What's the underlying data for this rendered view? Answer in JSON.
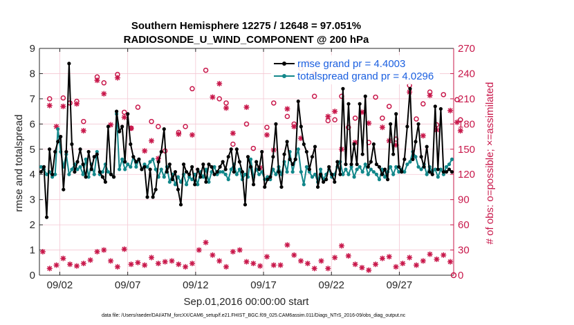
{
  "chart_data": {
    "type": "line",
    "title_line1": "Southern Hemisphere 12275 / 12648 = 97.051%",
    "title_line2": "RADIOSONDE_U_WIND_COMPONENT @ 200 hPa",
    "xlabel": "Sep.01,2016 00:00:00 start",
    "ylabel": "rmse and totalspread",
    "ylabel_right": "# of obs: o=possible; ×=assimilated",
    "footer": "data file: /Users/raeder/DAI/ATM_forcXX/CAM6_setup/f.e21.FHIST_BGC.f09_025.CAM6assim.011/Diags_NTrS_2016-09/obs_diag_output.nc",
    "xlim": [
      0.5,
      31
    ],
    "ylim": [
      0,
      9
    ],
    "ylim_right": [
      0,
      270
    ],
    "x_ticks": [
      2,
      7,
      12,
      17,
      22,
      27
    ],
    "x_tick_labels": [
      "09/02",
      "09/07",
      "09/12",
      "09/17",
      "09/22",
      "09/27"
    ],
    "y_ticks": [
      "0",
      "1",
      "2",
      "3",
      "4",
      "5",
      "6",
      "7",
      "8",
      "9"
    ],
    "y_ticks_right": [
      "0",
      "30",
      "60",
      "90",
      "120",
      "150",
      "180",
      "210",
      "240",
      "270"
    ],
    "grid": true,
    "legend": [
      {
        "name": "rmse",
        "label": "rmse grand pr = 4.4003",
        "color": "#000000"
      },
      {
        "name": "totalspread",
        "label": "totalspread grand pr = 4.0296",
        "color": "#12878a"
      }
    ],
    "series": [
      {
        "name": "rmse",
        "color": "#000000",
        "values": [
          4.1,
          4.3,
          2.3,
          5.0,
          4.0,
          4.9,
          5.3,
          5.5,
          3.4,
          4.9,
          8.4,
          5.2,
          4.1,
          4.5,
          5.0,
          4.4,
          3.9,
          4.9,
          4.2,
          4.7,
          4.8,
          4.1,
          3.9,
          3.7,
          5.9,
          4.0,
          3.9,
          6.5,
          5.7,
          5.9,
          4.5,
          6.4,
          5.2,
          4.7,
          4.5,
          4.6,
          4.2,
          4.3,
          3.1,
          4.2,
          3.1,
          3.4,
          4.5,
          4.9,
          5.8,
          4.1,
          4.4,
          3.8,
          4.1,
          3.4,
          2.8,
          4.4,
          4.1,
          4.0,
          4.3,
          3.6,
          4.2,
          3.9,
          4.4,
          3.7,
          4.4,
          4.3,
          4.0,
          4.1,
          4.3,
          4.5,
          4.2,
          4.7,
          5.0,
          4.1,
          5.0,
          4.5,
          4.1,
          2.8,
          4.7,
          4.3,
          3.6,
          4.5,
          4.2,
          4.9,
          3.5,
          3.8,
          3.9,
          4.7,
          6.0,
          4.1,
          3.5,
          4.8,
          5.3,
          4.6,
          4.4,
          4.6,
          6.9,
          5.9,
          5.2,
          4.9,
          4.2,
          4.7,
          5.1,
          3.5,
          4.0,
          3.7,
          3.8,
          4.3,
          4.0,
          3.7,
          4.5,
          4.0,
          7.4,
          4.4,
          6.8,
          4.4,
          5.2,
          4.4,
          6.8,
          4.8,
          7.1,
          4.3,
          4.5,
          5.2,
          4.4,
          4.3,
          4.0,
          4.2,
          3.8,
          6.0,
          4.8,
          6.4,
          4.3,
          4.1,
          4.6,
          5.9,
          7.4,
          4.6,
          5.3,
          6.0,
          4.7,
          4.3,
          5.1,
          4.1,
          4.0,
          6.7,
          4.2,
          6.6,
          4.1,
          4.1,
          4.2,
          4.1
        ]
      },
      {
        "name": "totalspread",
        "color": "#12878a",
        "values": [
          4.3,
          4.2,
          4.0,
          4.1,
          3.9,
          4.0,
          5.8,
          4.9,
          4.3,
          4.8,
          4.0,
          4.2,
          4.4,
          4.2,
          4.3,
          4.0,
          4.6,
          3.9,
          4.4,
          4.0,
          4.9,
          4.0,
          4.1,
          4.4,
          4.1,
          4.0,
          3.9,
          6.4,
          4.2,
          4.6,
          4.2,
          4.4,
          4.3,
          4.7,
          4.3,
          4.6,
          4.2,
          4.4,
          4.3,
          4.5,
          4.6,
          4.2,
          3.9,
          4.2,
          3.9,
          4.3,
          3.7,
          4.0,
          3.6,
          3.9,
          3.7,
          4.0,
          3.6,
          3.9,
          3.8,
          4.0,
          3.6,
          4.1,
          3.9,
          4.2,
          3.7,
          4.1,
          4.3,
          4.0,
          4.1,
          4.1,
          4.0,
          3.8,
          4.2,
          4.4,
          4.0,
          4.2,
          3.8,
          4.0,
          3.9,
          4.6,
          3.9,
          4.2,
          4.0,
          4.1,
          3.8,
          3.9,
          3.8,
          4.2,
          4.0,
          4.3,
          4.0,
          4.5,
          4.1,
          4.9,
          4.1,
          4.6,
          5.0,
          4.1,
          3.6,
          4.3,
          4.1,
          3.9,
          4.0,
          3.7,
          4.2,
          3.8,
          4.0,
          4.2,
          3.9,
          4.0,
          4.3,
          4.5,
          4.0,
          4.2,
          4.0,
          4.3,
          3.9,
          4.2,
          4.3,
          4.1,
          4.4,
          4.0,
          4.2,
          4.1,
          4.0,
          3.8,
          4.2,
          3.9,
          4.1,
          4.3,
          4.0,
          4.3,
          4.1,
          4.2,
          4.1,
          4.4,
          4.5,
          4.9,
          4.7,
          4.3,
          4.2,
          4.4,
          4.0,
          4.3,
          4.1,
          4.2,
          3.9,
          4.2,
          4.0,
          4.3,
          4.4,
          4.6
        ]
      }
    ],
    "obs_possible": {
      "days": [
        0.75,
        1.75,
        2.25,
        2.75,
        3.25,
        4.25,
        4.75,
        5.75,
        6.25,
        6.75,
        7.25,
        8.25,
        8.75,
        9.25,
        10.25,
        10.75,
        11.25,
        12.25,
        13.25,
        13.75,
        14.25,
        15.25,
        15.75,
        16.75,
        17.25,
        18.25,
        18.75,
        19.25,
        19.75,
        20.25,
        21.25,
        21.75,
        22.25,
        22.75,
        23.25,
        24.25,
        24.75,
        25.25,
        25.75,
        26.25,
        27.25,
        27.75,
        28.25,
        28.75,
        29.25,
        29.75,
        30.75,
        31.0
      ],
      "values": [
        210,
        211,
        205,
        207,
        183,
        236,
        229,
        239,
        194,
        175,
        200,
        183,
        177,
        148,
        170,
        177,
        222,
        244,
        210,
        205,
        156,
        180,
        151,
        176,
        205,
        189,
        180,
        246,
        253,
        213,
        184,
        185,
        213,
        176,
        187,
        158,
        212,
        187,
        201,
        162,
        226,
        186,
        204,
        218,
        179,
        215,
        209,
        185
      ]
    },
    "obs_assimilated": {
      "days": [
        0.75,
        1.25,
        1.75,
        2.75,
        3.25,
        4.25,
        4.75,
        5.25,
        5.75,
        6.25,
        6.75,
        7.75,
        8.25,
        8.75,
        10.25,
        11.25,
        12.75,
        13.25,
        13.75,
        14.25,
        15.25,
        16.25,
        16.75,
        17.25,
        18.25,
        18.75,
        19.25,
        20.25,
        21.25,
        21.75,
        22.25,
        23.25,
        23.75,
        24.25,
        25.25,
        25.75,
        26.25,
        27.25,
        28.25,
        28.75,
        29.25,
        30.25,
        30.75,
        31.0
      ],
      "values": [
        202,
        177,
        201,
        204,
        172,
        232,
        216,
        179,
        235,
        188,
        175,
        148,
        160,
        139,
        168,
        167,
        212,
        228,
        199,
        169,
        200,
        128,
        167,
        149,
        198,
        177,
        163,
        240,
        189,
        195,
        150,
        158,
        194,
        181,
        176,
        160,
        155,
        218,
        166,
        214,
        173,
        196,
        182,
        172
      ],
      "low_values": [
        28,
        8,
        12,
        20,
        13,
        11,
        14,
        18,
        28,
        30,
        17,
        10,
        31,
        13,
        15,
        12,
        21,
        14,
        16,
        17,
        13,
        10,
        14,
        30,
        39,
        24,
        17,
        10,
        28,
        30,
        16,
        14,
        11,
        22,
        12,
        12,
        36,
        24,
        17,
        14,
        8,
        17,
        8,
        21,
        35,
        23,
        13,
        9,
        6,
        13,
        20,
        22,
        10,
        14,
        21,
        12,
        17,
        25,
        19,
        24,
        16
      ]
    }
  }
}
